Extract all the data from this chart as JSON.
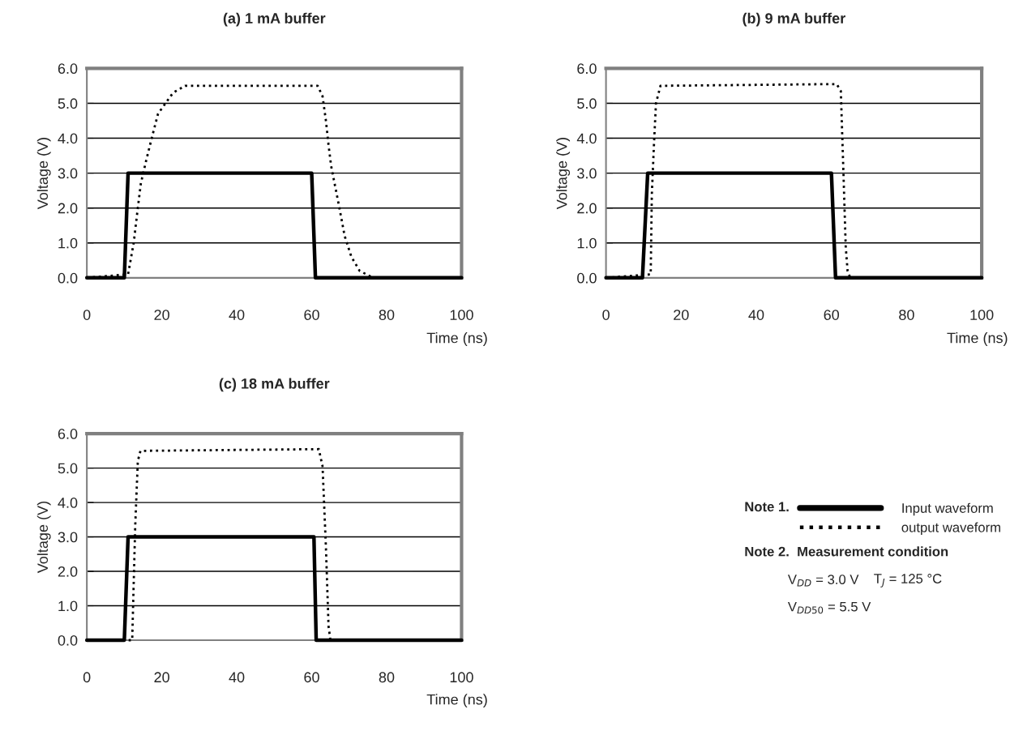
{
  "chart_data": [
    {
      "type": "line",
      "title": "(a) 1 mA buffer",
      "xlabel": "Time (ns)",
      "ylabel": "Voltage (V)",
      "xlim": [
        0,
        100
      ],
      "ylim": [
        0,
        6
      ],
      "xticks": [
        0,
        20,
        40,
        60,
        80,
        100
      ],
      "yticks": [
        {
          "value": 0,
          "label": "0.0"
        },
        {
          "value": 1,
          "label": "1.0"
        },
        {
          "value": 2,
          "label": "2.0"
        },
        {
          "value": 3,
          "label": "3.0"
        },
        {
          "value": 4,
          "label": "4.0"
        },
        {
          "value": 5,
          "label": "5.0"
        },
        {
          "value": 6,
          "label": "6.0"
        }
      ],
      "grid": "y",
      "legend": false,
      "series": [
        {
          "color": "#000000",
          "line_style": "solid",
          "x": [
            0,
            10,
            11,
            60,
            61,
            100
          ],
          "values": [
            0,
            0,
            3,
            3,
            0,
            0
          ]
        },
        {
          "color": "#000000",
          "line_style": "dotted",
          "x": [
            0,
            11,
            12.5,
            13.6,
            14.4,
            15.7,
            17.3,
            19,
            21,
            23,
            26.2,
            61.6,
            62.9,
            63.8,
            64.5,
            65.2,
            66.3,
            67.4,
            68.8,
            70.6,
            72.8,
            76.4,
            100
          ],
          "values": [
            0,
            0.1,
            1.0,
            2.0,
            2.7,
            3.3,
            4.0,
            4.7,
            5.0,
            5.3,
            5.5,
            5.5,
            5.2,
            4.5,
            3.8,
            3.2,
            2.6,
            2.0,
            1.2,
            0.6,
            0.2,
            0,
            0
          ]
        }
      ]
    },
    {
      "type": "line",
      "title": "(b) 9 mA buffer",
      "xlabel": "Time (ns)",
      "ylabel": "Voltage (V)",
      "xlim": [
        0,
        100
      ],
      "ylim": [
        0,
        6
      ],
      "xticks": [
        0,
        20,
        40,
        60,
        80,
        100
      ],
      "yticks": [
        {
          "value": 0,
          "label": "0.0"
        },
        {
          "value": 1,
          "label": "1.0"
        },
        {
          "value": 2,
          "label": "2.0"
        },
        {
          "value": 3,
          "label": "3.0"
        },
        {
          "value": 4,
          "label": "4.0"
        },
        {
          "value": 5,
          "label": "5.0"
        },
        {
          "value": 6,
          "label": "6.0"
        }
      ],
      "grid": "y",
      "legend": false,
      "series": [
        {
          "color": "#000000",
          "line_style": "solid",
          "x": [
            0,
            9.7,
            11.1,
            60,
            61.1,
            100
          ],
          "values": [
            0,
            0,
            3,
            3,
            0,
            0
          ]
        },
        {
          "color": "#000000",
          "line_style": "dotted",
          "x": [
            0,
            11.9,
            12.2,
            12.8,
            13.3,
            14.5,
            61.4,
            62.5,
            63.2,
            63.8,
            64.3,
            65,
            100
          ],
          "values": [
            0,
            0.1,
            2.4,
            3.9,
            5.0,
            5.5,
            5.55,
            5.35,
            3.0,
            0.9,
            0.2,
            0,
            0
          ]
        }
      ]
    },
    {
      "type": "line",
      "title": "(c) 18 mA buffer",
      "xlabel": "Time (ns)",
      "ylabel": "Voltage (V)",
      "xlim": [
        0,
        100
      ],
      "ylim": [
        0,
        6
      ],
      "xticks": [
        0,
        20,
        40,
        60,
        80,
        100
      ],
      "yticks": [
        {
          "value": 0,
          "label": "0.0"
        },
        {
          "value": 1,
          "label": "1.0"
        },
        {
          "value": 2,
          "label": "2.0"
        },
        {
          "value": 3,
          "label": "3.0"
        },
        {
          "value": 4,
          "label": "4.0"
        },
        {
          "value": 5,
          "label": "5.0"
        },
        {
          "value": 6,
          "label": "6.0"
        }
      ],
      "grid": "y",
      "legend": "right",
      "series": [
        {
          "name": "Input waveform",
          "color": "#000000",
          "line_style": "solid",
          "x": [
            0,
            10,
            11,
            60.6,
            61.2,
            100
          ],
          "values": [
            0,
            0,
            3,
            3,
            0,
            0
          ]
        },
        {
          "name": "output waveform",
          "color": "#000000",
          "line_style": "dotted",
          "x": [
            0,
            12.1,
            12.9,
            13.6,
            14.3,
            61.9,
            62.9,
            63.8,
            64.5,
            65,
            100
          ],
          "values": [
            0,
            0,
            3.3,
            5.2,
            5.5,
            5.55,
            5.05,
            2.7,
            0.4,
            0,
            0
          ]
        }
      ],
      "annotations": [
        "Note 1.",
        "Note 2.  Measurement condition",
        "V$_{DD}$ = 3.0 V",
        "T$_{J}$ = 125 °C",
        "V$_{DD50}$ = 5.5 V"
      ]
    }
  ]
}
